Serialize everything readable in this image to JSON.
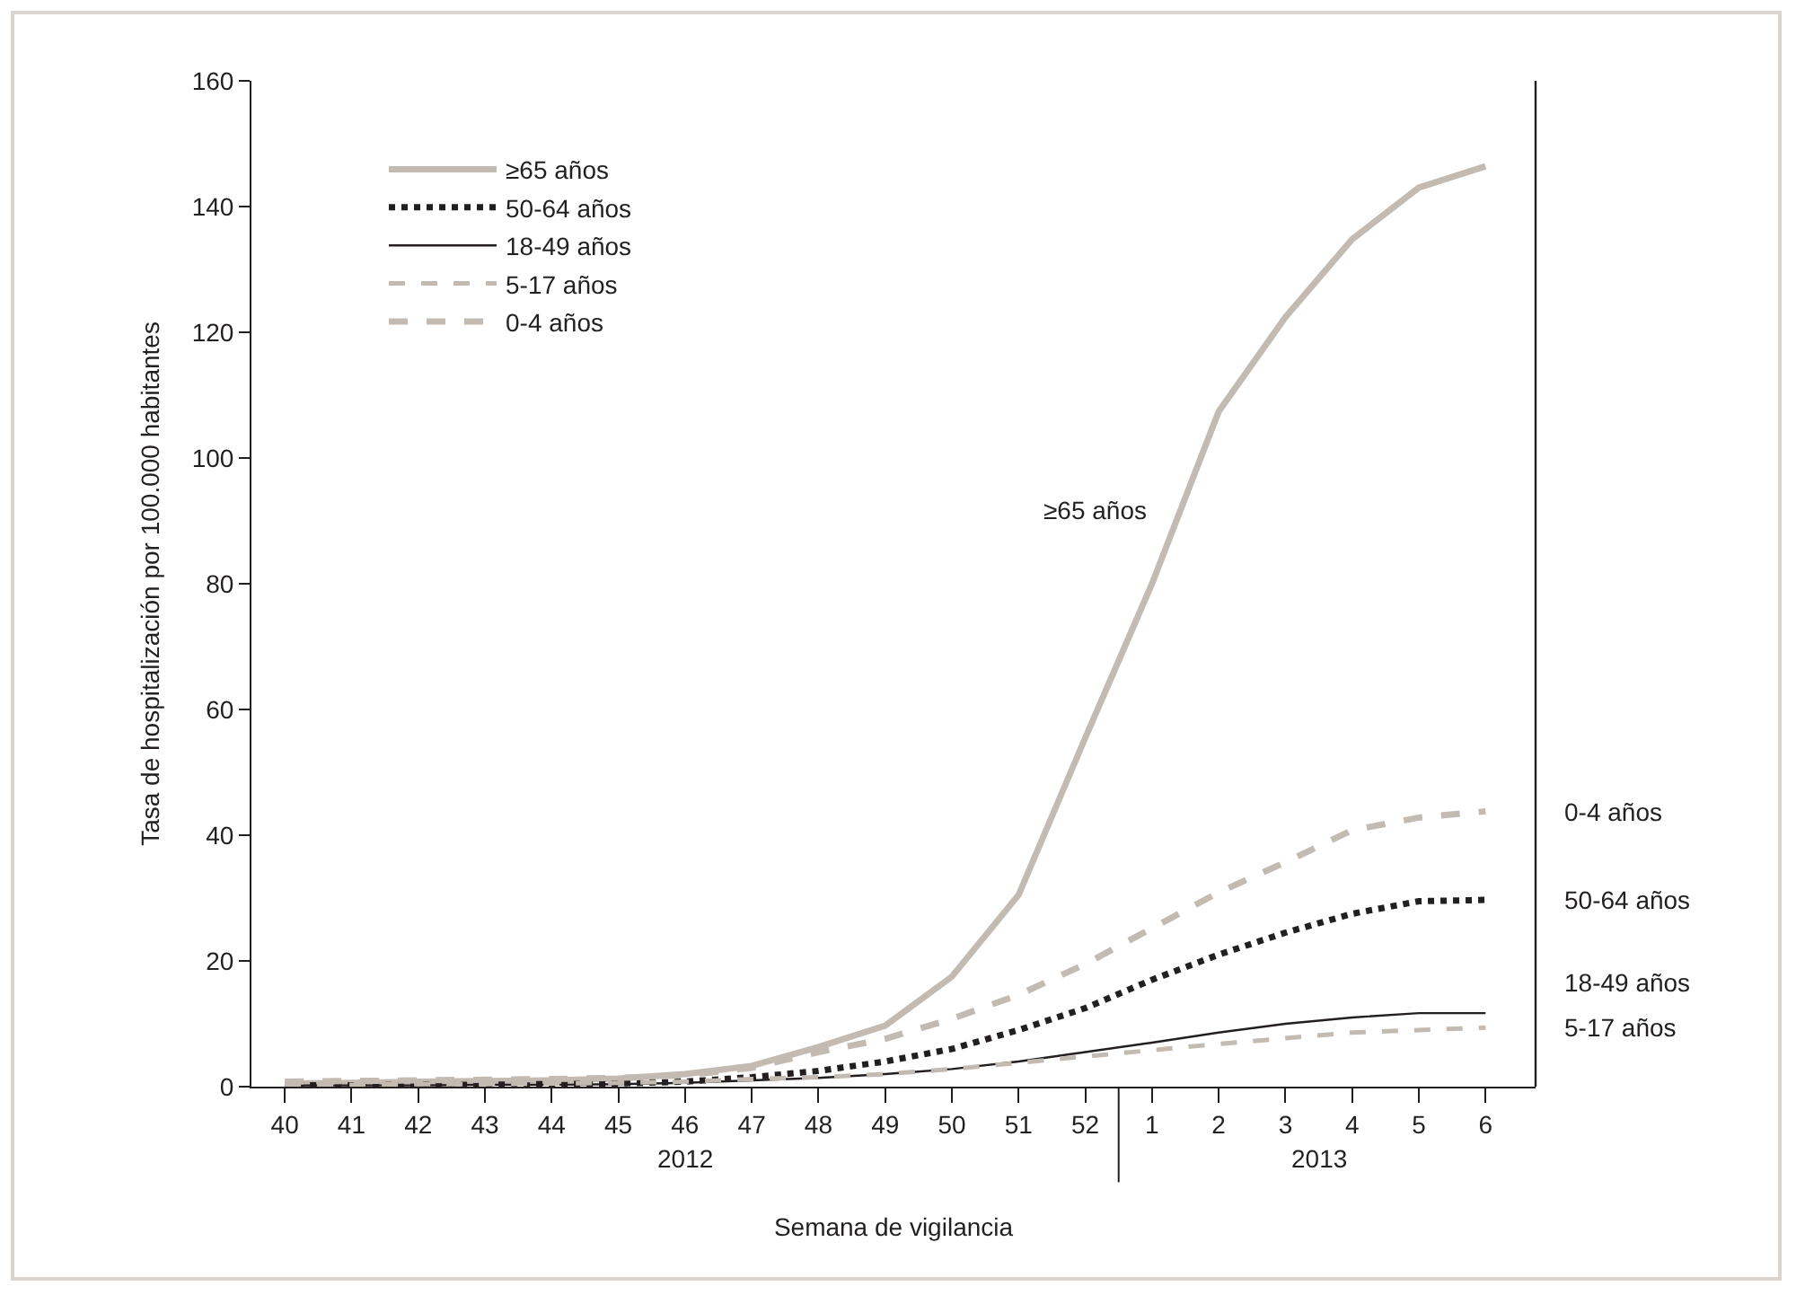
{
  "chart_data": {
    "type": "line",
    "xlabel": "Semana de vigilancia",
    "ylabel": "Tasa de hospitalización por 100.000 habitantes",
    "categories": [
      "40",
      "41",
      "42",
      "43",
      "44",
      "45",
      "46",
      "47",
      "48",
      "49",
      "50",
      "51",
      "52",
      "1",
      "2",
      "3",
      "4",
      "5",
      "6"
    ],
    "series": [
      {
        "name": "≥65 años",
        "color": "#c3bab1",
        "line_style": "solid",
        "values": [
          0.5,
          0.6,
          0.8,
          0.9,
          1,
          1.3,
          2,
          3.3,
          6.3,
          9.7,
          17.5,
          30.5,
          55.5,
          80,
          107.4,
          122.4,
          134.8,
          143,
          146.4
        ]
      },
      {
        "name": "50-64 años",
        "color": "#231f20",
        "line_style": "dotted",
        "values": [
          0.2,
          0.2,
          0.3,
          0.3,
          0.4,
          0.5,
          0.8,
          1.5,
          2.5,
          4,
          6,
          9,
          12.5,
          17,
          21,
          24.5,
          27.5,
          29.5,
          29.7
        ]
      },
      {
        "name": "18-49 años",
        "color": "#231f20",
        "line_style": "solid",
        "values": [
          0.2,
          0.2,
          0.2,
          0.3,
          0.3,
          0.4,
          0.6,
          1,
          1.4,
          2,
          2.8,
          4,
          5.5,
          7,
          8.6,
          10,
          11,
          11.7,
          11.7
        ]
      },
      {
        "name": "5-17 años",
        "color": "#c3bab1",
        "line_style": "dashed",
        "values": [
          0.3,
          0.3,
          0.4,
          0.4,
          0.5,
          0.6,
          0.8,
          1.2,
          1.5,
          2,
          2.8,
          3.8,
          4.8,
          5.8,
          6.8,
          7.7,
          8.6,
          9,
          9.4
        ]
      },
      {
        "name": "0-4 años",
        "color": "#c3bab1",
        "line_style": "dashed",
        "values": [
          0.8,
          0.9,
          1,
          1.1,
          1.2,
          1.4,
          1.8,
          3,
          5.5,
          7.6,
          10.8,
          14.6,
          19.5,
          25.2,
          30.9,
          35.7,
          40.8,
          42.8,
          43.8
        ]
      }
    ],
    "annotations": [
      "2012",
      "2013"
    ],
    "ylim": [
      0,
      160
    ],
    "yticks": [
      0,
      20,
      40,
      60,
      80,
      100,
      120,
      140,
      160
    ],
    "grid": false,
    "legend": "top left",
    "marker": "none"
  }
}
